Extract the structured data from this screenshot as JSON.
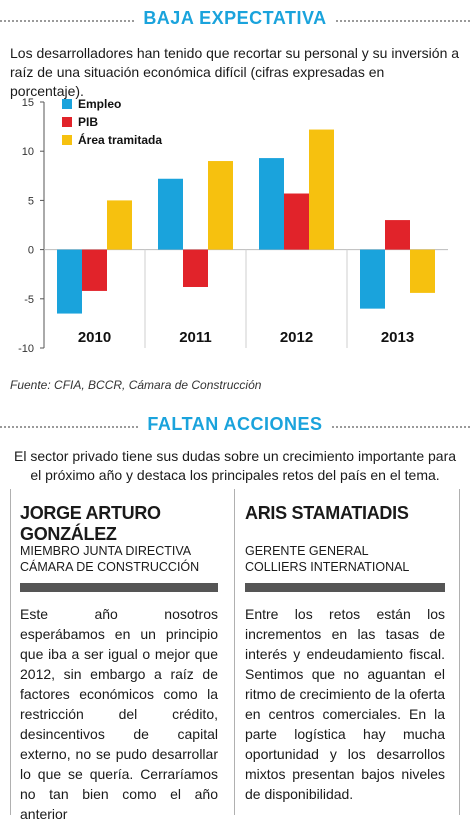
{
  "section1": {
    "title": "BAJA EXPECTATIVA"
  },
  "intro": "Los desarrolladores han tenido que recortar su personal y su inversión a raíz de una situación económica difícil (cifras expresadas en porcentaje).",
  "chart_data": {
    "type": "bar",
    "categories": [
      "2010",
      "2011",
      "2012",
      "2013"
    ],
    "series": [
      {
        "name": "Empleo",
        "color": "#1aa3dc",
        "values": [
          -6.5,
          7.2,
          9.3,
          -6.0
        ]
      },
      {
        "name": "PIB",
        "color": "#e1232a",
        "values": [
          -4.2,
          -3.8,
          5.7,
          3.0
        ]
      },
      {
        "name": "Área tramitada",
        "color": "#f6c10f",
        "values": [
          5.0,
          9.0,
          12.2,
          -4.4
        ]
      }
    ],
    "ylim": [
      -10,
      15
    ],
    "yticks": [
      "15",
      "10",
      "5",
      "0",
      "-5",
      "-10"
    ],
    "legend": "top-left",
    "grid": false
  },
  "source": "Fuente: CFIA, BCCR, Cámara de Construcción",
  "section2": {
    "title": "FALTAN ACCIONES"
  },
  "intro2": "El sector privado tiene sus dudas sobre un crecimiento importante para el próximo año y destaca los principales retos del país en el tema.",
  "left": {
    "name": "JORGE ARTURO GONZÁLEZ",
    "role1": "MIEMBRO JUNTA DIRECTIVA",
    "role2": "CÁMARA DE CONSTRUCCIÓN",
    "quote": "Este año nosotros esperábamos en un principio que iba a ser igual o mejor que 2012, sin embargo a raíz de factores económicos como la restricción del crédito, desincentivos de capital externo, no se pudo desarrollar lo que se quería. Cerraríamos no tan bien como el año anterior"
  },
  "right": {
    "name": "ARIS STAMATIADIS",
    "role1": "GERENTE GENERAL",
    "role2": "COLLIERS INTERNATIONAL",
    "quote": "Entre los retos están los incrementos en las tasas de interés y endeudamiento fiscal. Sentimos que no aguantan el ritmo de crecimiento de la oferta en centros comerciales. En la parte logística hay mucha oportunidad y los desarrollos mixtos presentan bajos niveles de disponibilidad."
  }
}
